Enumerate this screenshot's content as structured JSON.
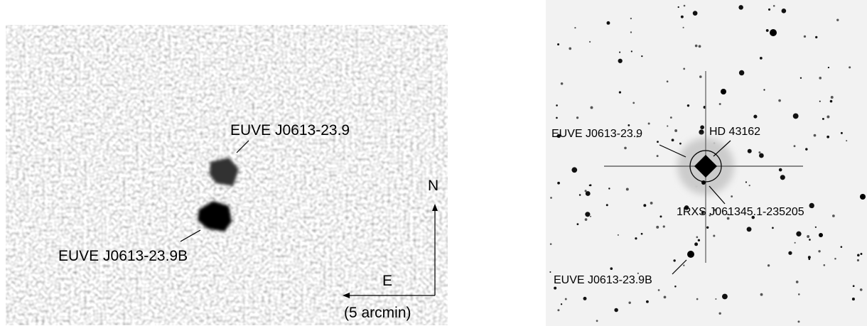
{
  "left_panel": {
    "labels": [
      "EUVE J0613-23.9",
      "EUVE J0613-23.9B"
    ],
    "compass": {
      "north": "N",
      "east": "E",
      "scale": "(5 arcmin)"
    }
  },
  "right_panel": {
    "labels": [
      "EUVE J0613-23.9",
      "HD 43162",
      "1RXS J061345.1-235205",
      "EUVE J0613-23.9B"
    ]
  }
}
